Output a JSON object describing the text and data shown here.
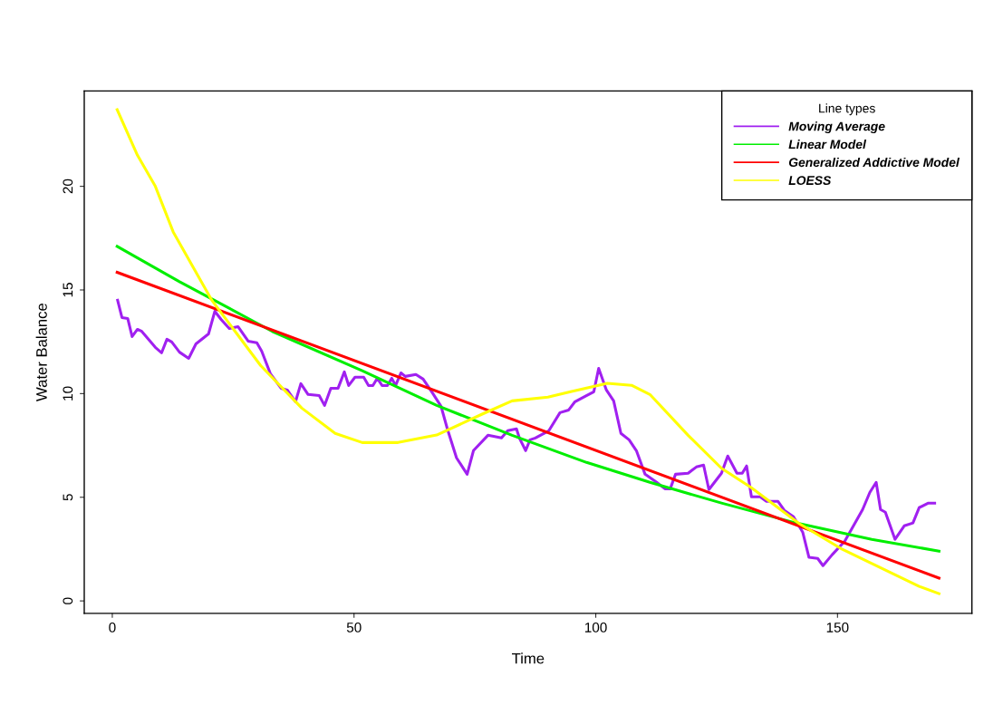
{
  "chart_data": {
    "type": "line",
    "xlabel": "Time",
    "ylabel": "Water Balance",
    "legend_title": "Line types",
    "legend": "top right",
    "grid": false,
    "xlim": [
      -5.8,
      177.8
    ],
    "ylim": [
      -0.6,
      24.6
    ],
    "xticks": [
      0,
      50,
      100,
      150
    ],
    "yticks": [
      0,
      5,
      10,
      15,
      20
    ],
    "series": [
      {
        "name": "Moving Average",
        "color": "#a020f0",
        "x": [
          1.1,
          2.0,
          3.2,
          4.1,
          5.2,
          6.1,
          8.9,
          10.2,
          11.3,
          12.3,
          13.9,
          15.8,
          17.3,
          19.9,
          21.2,
          22.5,
          24.2,
          26.0,
          28.1,
          29.9,
          30.9,
          32.7,
          34.9,
          36.2,
          37.9,
          39.0,
          40.5,
          42.8,
          43.9,
          45.2,
          46.7,
          48.0,
          48.9,
          50.2,
          52.0,
          53.0,
          53.9,
          54.8,
          55.8,
          56.9,
          57.8,
          58.6,
          59.7,
          60.6,
          62.8,
          64.3,
          66.2,
          68.0,
          69.3,
          71.2,
          73.4,
          74.7,
          77.7,
          80.5,
          81.8,
          83.6,
          84.2,
          85.5,
          86.4,
          87.5,
          90.3,
          92.6,
          94.4,
          95.7,
          97.8,
          99.6,
          100.6,
          102.2,
          103.7,
          105.2,
          106.9,
          108.4,
          110.2,
          112.6,
          114.3,
          115.4,
          116.5,
          119.1,
          120.8,
          122.3,
          123.4,
          126.0,
          127.3,
          129.2,
          130.3,
          131.2,
          132.2,
          134.0,
          135.3,
          137.7,
          139.0,
          140.9,
          142.8,
          144.1,
          145.9,
          147.0,
          148.9,
          151.5,
          153.3,
          155.2,
          156.7,
          158.0,
          158.9,
          159.9,
          161.9,
          163.8,
          165.6,
          166.9,
          168.8,
          170.1
        ],
        "values": [
          14.5,
          13.67,
          13.62,
          12.75,
          13.1,
          13.0,
          12.23,
          11.97,
          12.62,
          12.49,
          12.0,
          11.7,
          12.4,
          12.88,
          13.97,
          13.58,
          13.14,
          13.23,
          12.53,
          12.45,
          12.05,
          10.96,
          10.26,
          10.17,
          9.61,
          10.48,
          9.96,
          9.91,
          9.43,
          10.26,
          10.26,
          11.05,
          10.39,
          10.79,
          10.79,
          10.39,
          10.39,
          10.74,
          10.39,
          10.39,
          10.74,
          10.39,
          11.0,
          10.83,
          10.92,
          10.7,
          10.04,
          9.39,
          8.3,
          6.9,
          6.11,
          7.25,
          7.99,
          7.86,
          8.21,
          8.3,
          7.86,
          7.25,
          7.77,
          7.86,
          8.21,
          9.08,
          9.21,
          9.61,
          9.87,
          10.09,
          11.22,
          10.17,
          9.65,
          8.08,
          7.77,
          7.25,
          6.11,
          5.72,
          5.41,
          5.41,
          6.11,
          6.16,
          6.46,
          6.55,
          5.37,
          6.16,
          6.99,
          6.16,
          6.16,
          6.51,
          5.02,
          5.02,
          4.8,
          4.8,
          4.37,
          4.06,
          3.32,
          2.1,
          2.05,
          1.7,
          2.23,
          2.88,
          3.62,
          4.41,
          5.24,
          5.72,
          4.41,
          4.28,
          2.97,
          3.62,
          3.76,
          4.5,
          4.72,
          4.72
        ]
      },
      {
        "name": "Linear Model",
        "color": "#00ee00",
        "x": [
          1,
          13.9,
          33.1,
          51.7,
          67.1,
          82.7,
          98.1,
          111.2,
          126.0,
          141.4,
          157.1,
          171
        ],
        "values": [
          17.1,
          15.4,
          13.0,
          11.1,
          9.43,
          7.99,
          6.68,
          5.72,
          4.72,
          3.76,
          2.97,
          2.4
        ]
      },
      {
        "name": "Generalized Addictive Model",
        "color": "#ff0000",
        "x": [
          1,
          171
        ],
        "values": [
          15.85,
          1.1
        ]
      },
      {
        "name": "LOESS",
        "color": "#ffff00",
        "x": [
          1,
          5.2,
          8.9,
          12.6,
          20.6,
          30.7,
          39.2,
          46.1,
          51.7,
          59.1,
          67.1,
          76.4,
          82.7,
          90.1,
          95.0,
          102.4,
          107.4,
          111.2,
          119.1,
          126.0,
          132.2,
          142.2,
          150.7,
          166.9,
          171
        ],
        "values": [
          23.7,
          21.5,
          20.0,
          17.8,
          14.5,
          11.35,
          9.3,
          8.08,
          7.64,
          7.64,
          8.0,
          9.0,
          9.65,
          9.83,
          10.1,
          10.5,
          10.4,
          9.96,
          7.99,
          6.4,
          5.46,
          3.71,
          2.53,
          0.7,
          0.35
        ]
      }
    ]
  }
}
